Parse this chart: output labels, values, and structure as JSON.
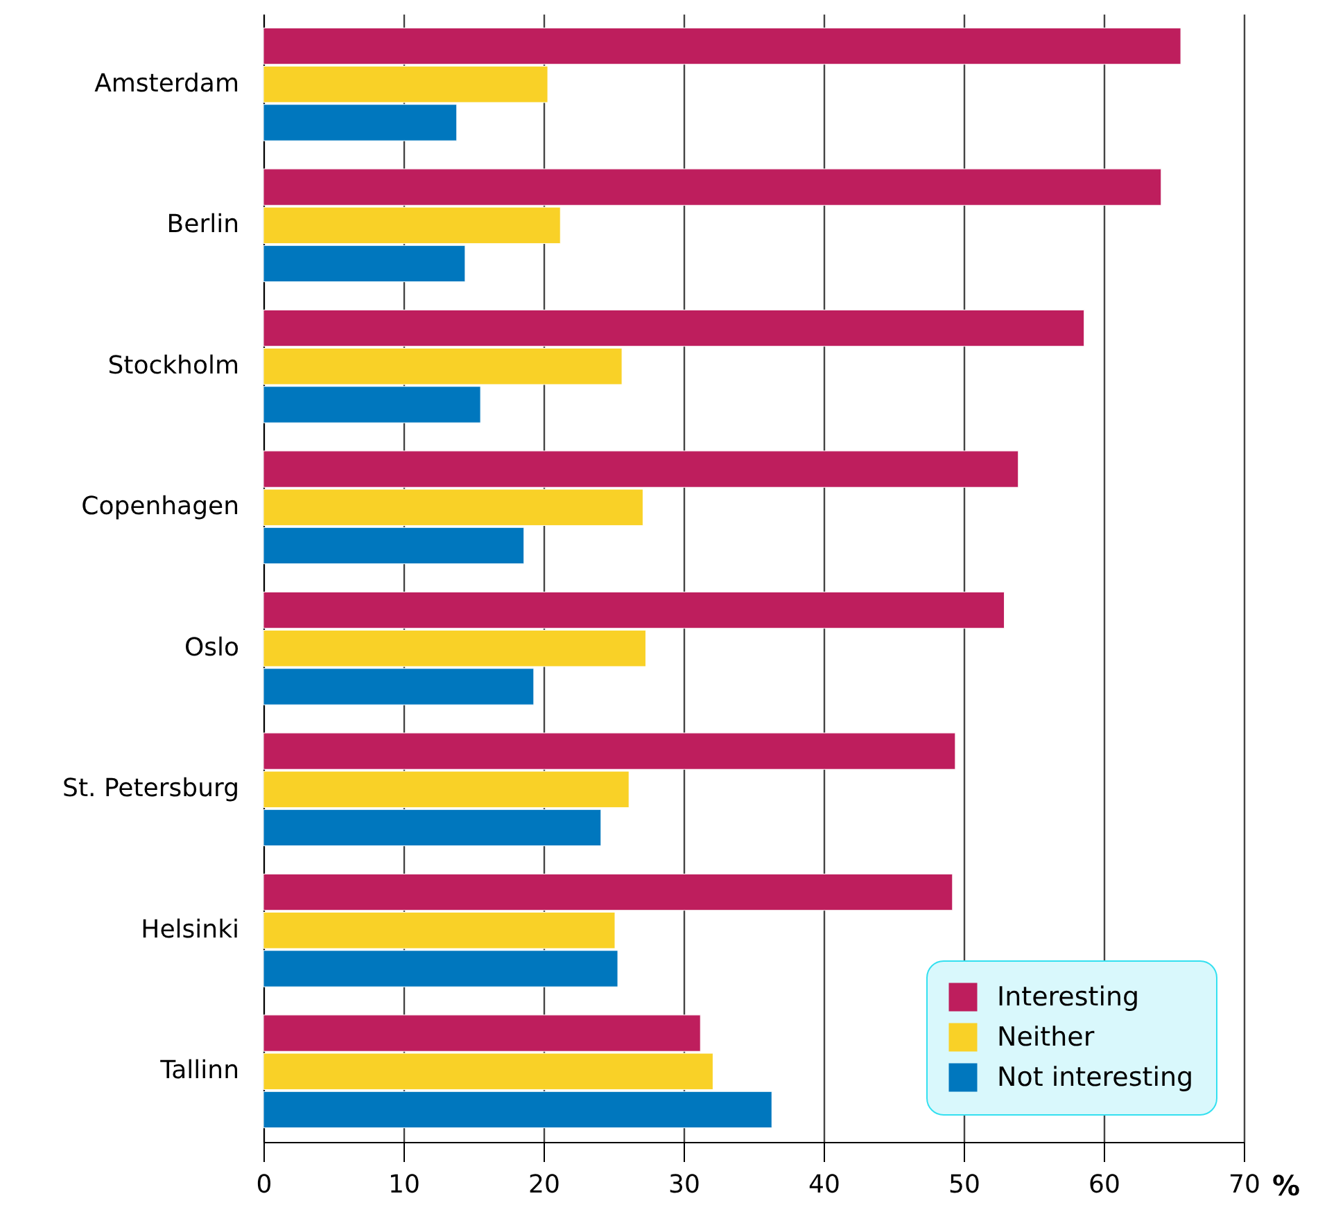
{
  "chart_data": {
    "type": "bar",
    "orientation": "horizontal",
    "xlabel": "%",
    "categories": [
      "Amsterdam",
      "Berlin",
      "Stockholm",
      "Copenhagen",
      "Oslo",
      "St. Petersburg",
      "Helsinki",
      "Tallinn"
    ],
    "series": [
      {
        "name": "Interesting",
        "color": "#be1e5d",
        "values": [
          65.5,
          64.1,
          58.6,
          53.9,
          52.9,
          49.4,
          49.2,
          31.2
        ]
      },
      {
        "name": "Neither",
        "color": "#f9d127",
        "values": [
          20.3,
          21.2,
          25.6,
          27.1,
          27.3,
          26.1,
          25.1,
          32.1
        ]
      },
      {
        "name": "Not interesting",
        "color": "#0077be",
        "values": [
          13.8,
          14.4,
          15.5,
          18.6,
          19.3,
          24.1,
          25.3,
          36.3
        ]
      }
    ],
    "xlim": [
      0,
      70
    ],
    "xticks": [
      0,
      10,
      20,
      30,
      40,
      50,
      60,
      70
    ],
    "grid": "x",
    "legend": "bottom right"
  }
}
